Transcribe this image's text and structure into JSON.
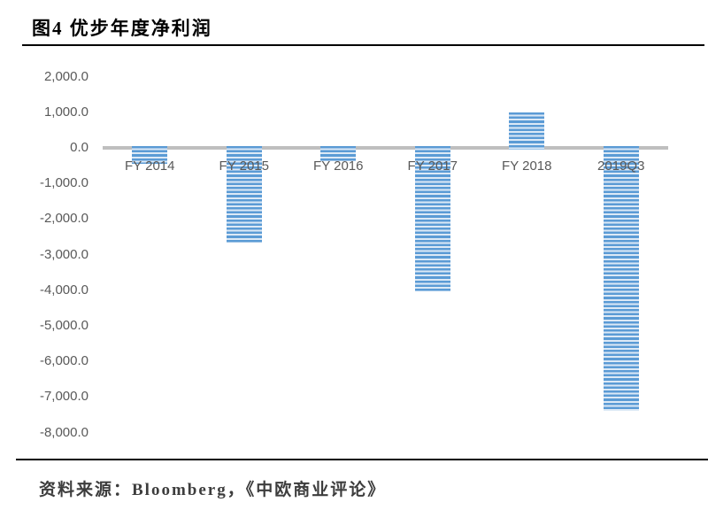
{
  "header": {
    "title": "图4 优步年度净利润"
  },
  "footer": {
    "source_note": "资料来源：Bloomberg，《中欧商业评论》"
  },
  "chart_data": {
    "type": "bar",
    "title": "图4 优步年度净利润",
    "categories": [
      "FY 2014",
      "FY 2015",
      "FY 2016",
      "FY 2017",
      "FY 2018",
      "2019Q3"
    ],
    "values": [
      -450,
      -2650,
      -370,
      -4030,
      1000,
      -7400
    ],
    "series_name": "年度净利润",
    "xlabel": "",
    "ylabel": "",
    "ylim": [
      -8000,
      2000
    ],
    "ytick_step": 1000,
    "yticks": {
      "values": [
        2000,
        1000,
        0,
        -1000,
        -2000,
        -3000,
        -4000,
        -5000,
        -6000,
        -7000,
        -8000
      ],
      "labels": [
        "2,000.0",
        "1,000.0",
        "0.0",
        "-1,000.0",
        "-2,000.0",
        "-3,000.0",
        "-4,000.0",
        "-5,000.0",
        "-6,000.0",
        "-7,000.0",
        "-8,000.0"
      ]
    },
    "grid": false,
    "legend_position": "none",
    "colors": {
      "bar_stripe_dark": "#5B9BD5",
      "bar_stripe_light": "#DCE9F6",
      "axis_line": "#BFBFBF",
      "tick_label": "#595959"
    }
  }
}
